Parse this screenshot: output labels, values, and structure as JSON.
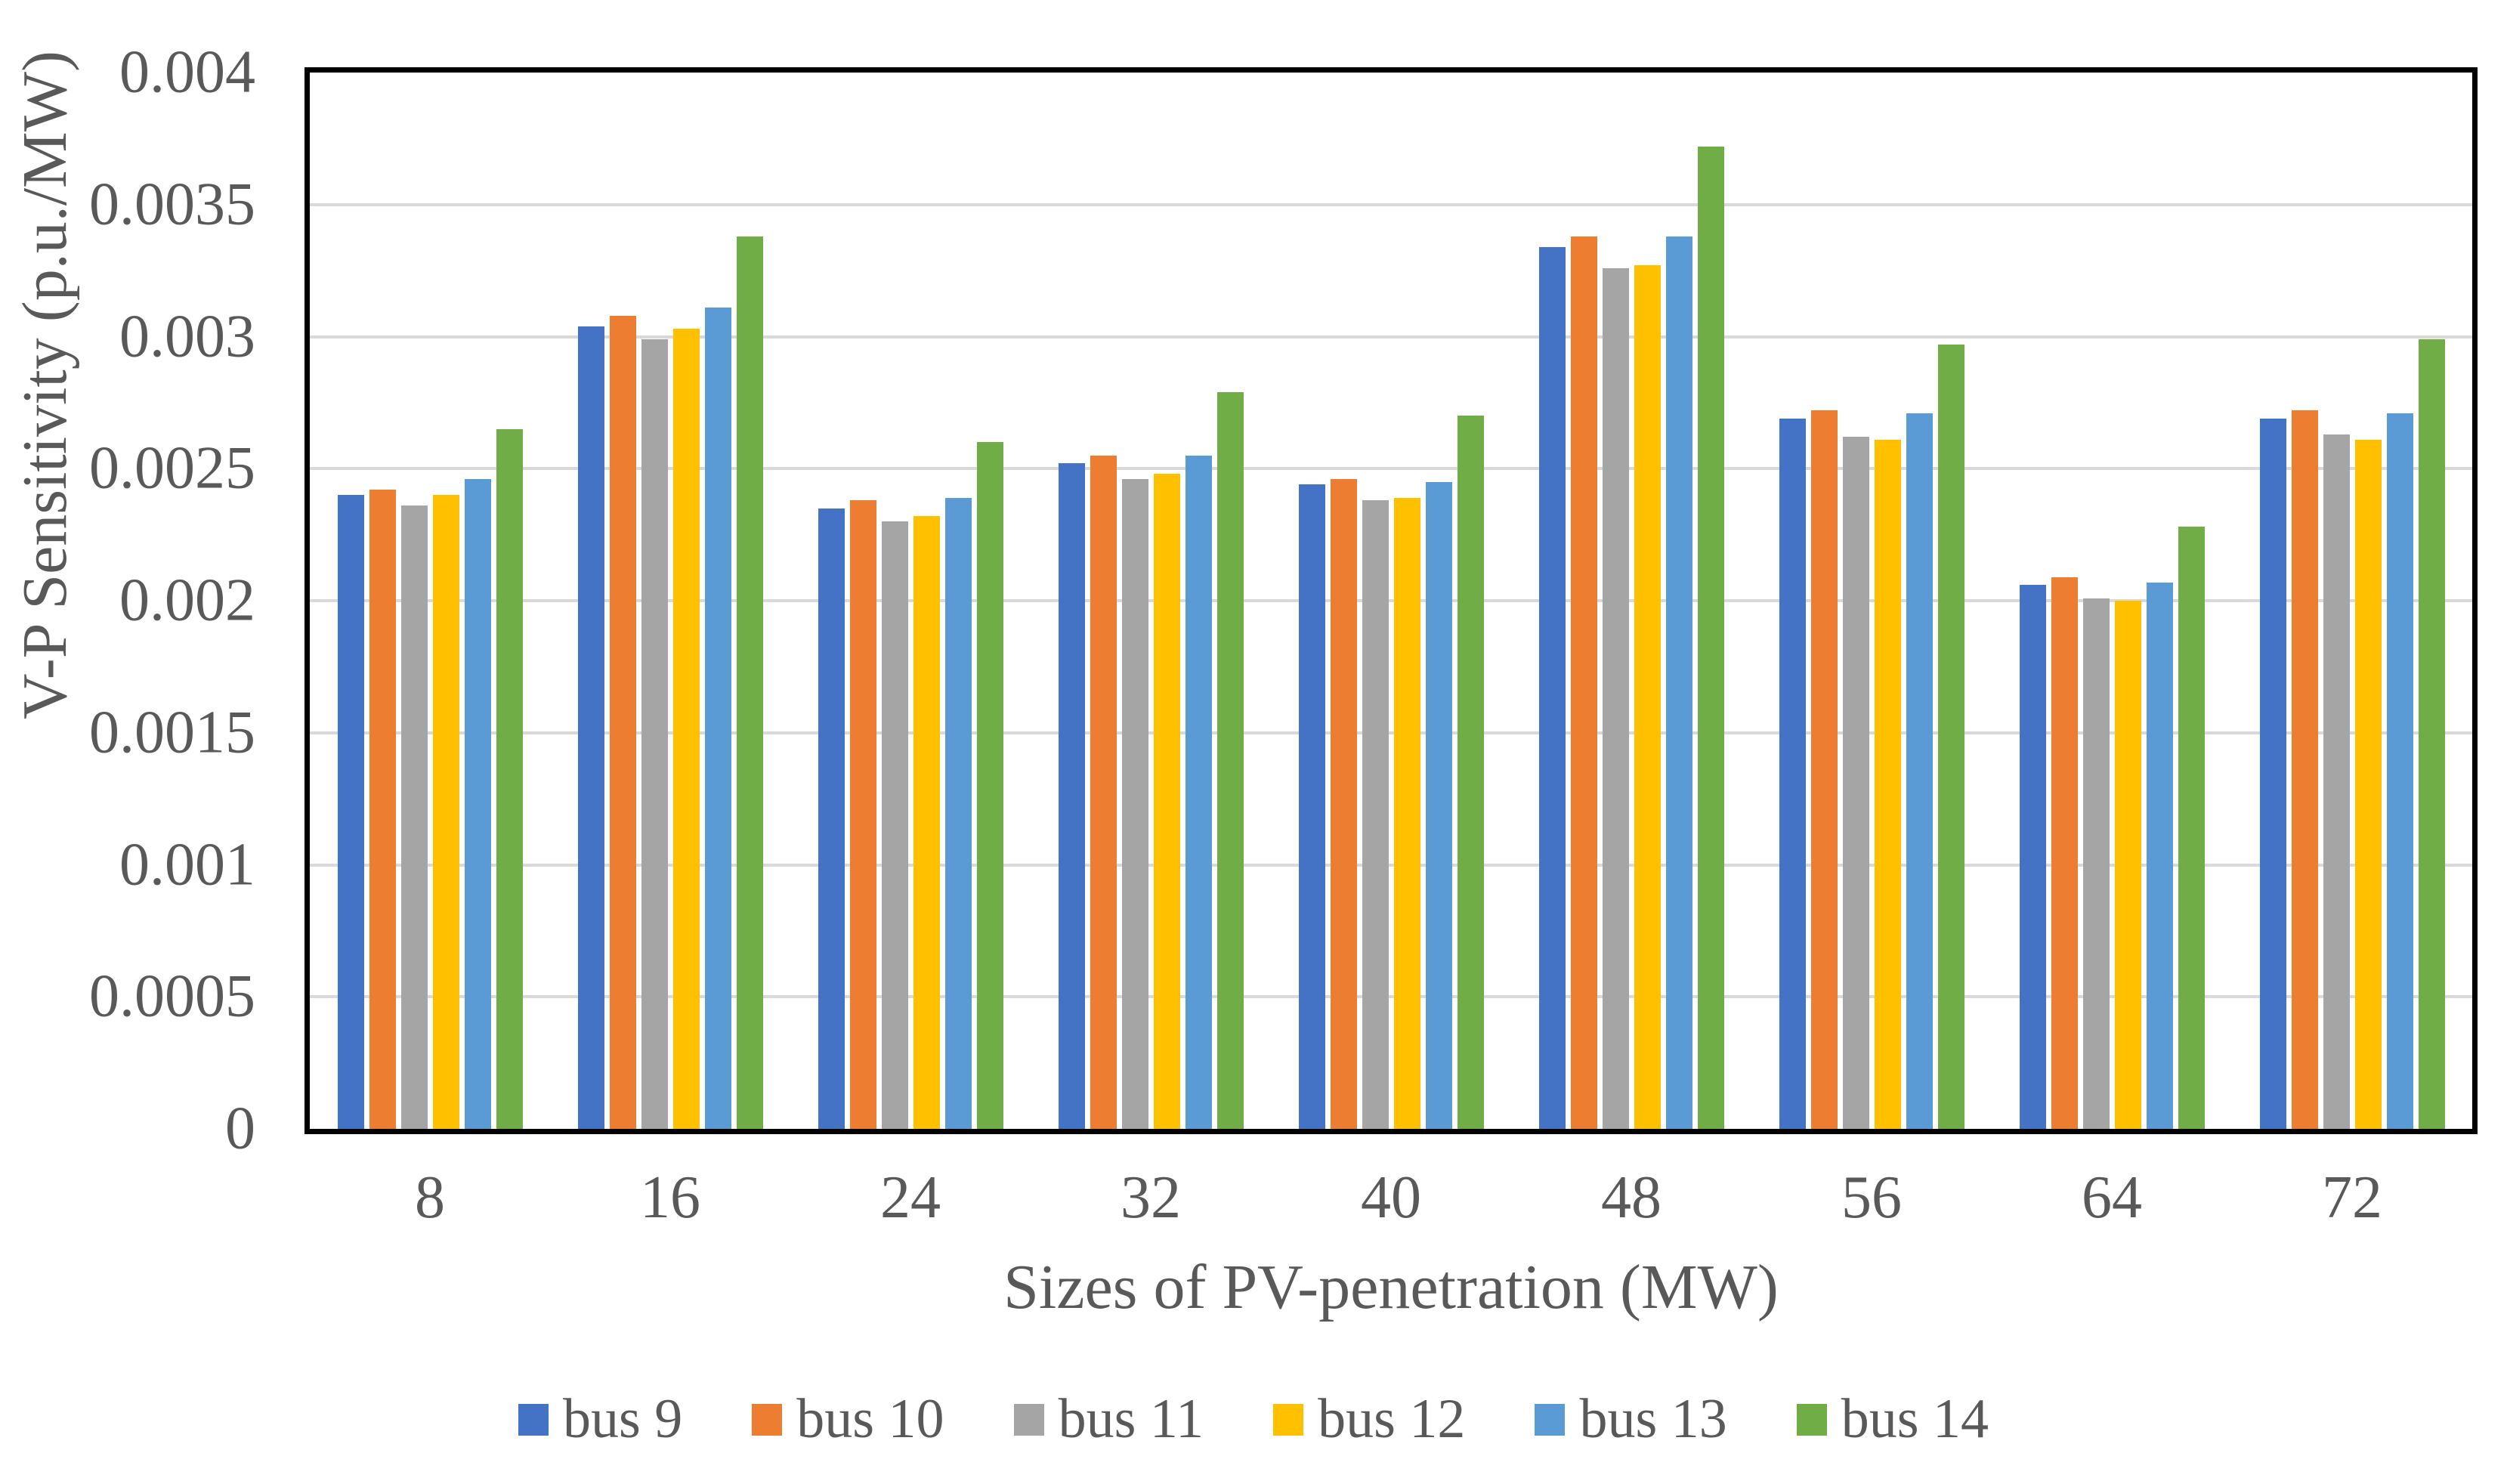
{
  "chart_data": {
    "type": "bar",
    "title": "",
    "xlabel": "Sizes of PV-penetration (MW)",
    "ylabel": "V-P Sensitivity (p.u./MW)",
    "categories": [
      "8",
      "16",
      "24",
      "32",
      "40",
      "48",
      "56",
      "64",
      "72"
    ],
    "series": [
      {
        "name": "bus 9",
        "color": "#4472C4",
        "values": [
          0.0024,
          0.00304,
          0.00235,
          0.00252,
          0.00244,
          0.00334,
          0.00269,
          0.00206,
          0.00269
        ]
      },
      {
        "name": "bus 10",
        "color": "#ED7D31",
        "values": [
          0.00242,
          0.00308,
          0.00238,
          0.00255,
          0.00246,
          0.00338,
          0.00272,
          0.00209,
          0.00272
        ]
      },
      {
        "name": "bus 11",
        "color": "#A5A5A5",
        "values": [
          0.00236,
          0.00299,
          0.0023,
          0.00246,
          0.00238,
          0.00326,
          0.00262,
          0.00201,
          0.00263
        ]
      },
      {
        "name": "bus 12",
        "color": "#FFC000",
        "values": [
          0.0024,
          0.00303,
          0.00232,
          0.00248,
          0.00239,
          0.00327,
          0.00261,
          0.002,
          0.00261
        ]
      },
      {
        "name": "bus 13",
        "color": "#5B9BD5",
        "values": [
          0.00246,
          0.00311,
          0.00239,
          0.00255,
          0.00245,
          0.00338,
          0.00271,
          0.00207,
          0.00271
        ]
      },
      {
        "name": "bus 14",
        "color": "#70AD47",
        "values": [
          0.00265,
          0.00338,
          0.0026,
          0.00279,
          0.0027,
          0.00372,
          0.00297,
          0.00228,
          0.00299
        ]
      }
    ],
    "ylim": [
      0,
      0.004
    ],
    "yticks": [
      0,
      0.0005,
      0.001,
      0.0015,
      0.002,
      0.0025,
      0.003,
      0.0035,
      0.004
    ],
    "ytick_labels": [
      "0",
      "0.0005",
      "0.001",
      "0.0015",
      "0.002",
      "0.0025",
      "0.003",
      "0.0035",
      "0.004"
    ],
    "grid": "horizontal",
    "legend_position": "bottom"
  },
  "colors": {
    "text": "#595959",
    "gridline": "#D9D9D9",
    "axis_border": "#000000",
    "background": "#FFFFFF"
  }
}
